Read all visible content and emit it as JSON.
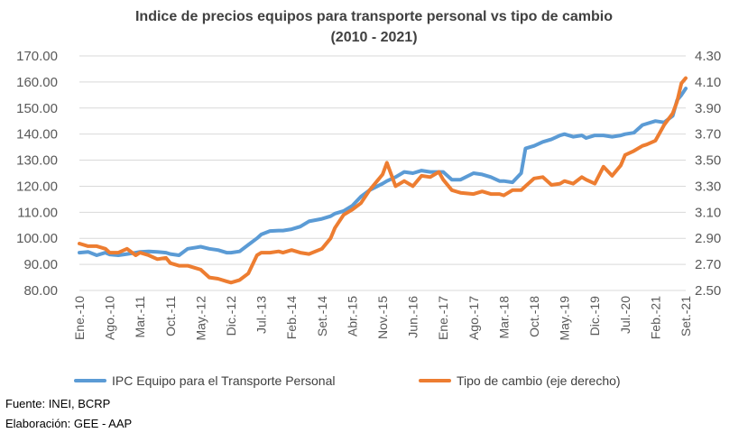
{
  "title_line1": "Indice de precios equipos para transporte personal vs tipo de cambio",
  "title_line2": "(2010 - 2021)",
  "footer_source": "Fuente: INEI, BCRP",
  "footer_prepared": "Elaboración: GEE - AAP",
  "colors": {
    "ipc": "#5b9bd5",
    "tc": "#ed7d31",
    "grid": "#d9d9d9",
    "text": "#595959"
  },
  "chart_data": {
    "type": "line",
    "x_tick_labels": [
      "Ene.-10",
      "Ago.-10",
      "Mar.-11",
      "Oct.-11",
      "May.-12",
      "Dic.-12",
      "Jul.-13",
      "Feb.-14",
      "Set.-14",
      "Abr.-15",
      "Nov.-15",
      "Jun.-16",
      "Ene.-17",
      "Ago.-17",
      "Mar.-18",
      "Oct.-18",
      "May.-19",
      "Dic.-19",
      "Jul.-20",
      "Feb.-21",
      "Set.-21"
    ],
    "y_left": {
      "min": 80,
      "max": 170,
      "step": 10,
      "tick_labels": [
        "80.00",
        "90.00",
        "100.00",
        "110.00",
        "120.00",
        "130.00",
        "140.00",
        "150.00",
        "160.00",
        "170.00"
      ]
    },
    "y_right": {
      "min": 2.5,
      "max": 4.3,
      "step": 0.2,
      "tick_labels": [
        "2.50",
        "2.70",
        "2.90",
        "3.10",
        "3.30",
        "3.50",
        "3.70",
        "3.90",
        "4.10",
        "4.30"
      ]
    },
    "legend_position": "bottom",
    "grid": true,
    "series": [
      {
        "name": "IPC Equipo para el Transporte Personal",
        "axis": "left",
        "points": [
          [
            "Ene.-10",
            94.5
          ],
          [
            "Mar.-10",
            94.8
          ],
          [
            "May.-10",
            93.5
          ],
          [
            "Jul.-10",
            94.5
          ],
          [
            "Ago.-10",
            93.8
          ],
          [
            "Oct.-10",
            93.5
          ],
          [
            "Dic.-10",
            94.0
          ],
          [
            "Feb.-11",
            94.5
          ],
          [
            "Mar.-11",
            94.8
          ],
          [
            "May.-11",
            95.0
          ],
          [
            "Jul.-11",
            94.8
          ],
          [
            "Sep.-11",
            94.5
          ],
          [
            "Oct.-11",
            94.0
          ],
          [
            "Dic.-11",
            93.5
          ],
          [
            "Feb.-12",
            96.0
          ],
          [
            "Abr.-12",
            96.5
          ],
          [
            "May.-12",
            96.8
          ],
          [
            "Jul.-12",
            96.0
          ],
          [
            "Sep.-12",
            95.5
          ],
          [
            "Nov.-12",
            94.5
          ],
          [
            "Dic.-12",
            94.5
          ],
          [
            "Feb.-13",
            95.0
          ],
          [
            "Abr.-13",
            97.5
          ],
          [
            "Jun.-13",
            100.0
          ],
          [
            "Jul.-13",
            101.5
          ],
          [
            "Set.-13",
            102.8
          ],
          [
            "Nov.-13",
            103.0
          ],
          [
            "Dic.-13",
            103.0
          ],
          [
            "Feb.-14",
            103.5
          ],
          [
            "Abr.-14",
            104.5
          ],
          [
            "Jun.-14",
            106.5
          ],
          [
            "Set.-14",
            107.5
          ],
          [
            "Nov.-14",
            108.5
          ],
          [
            "Dic.-14",
            109.5
          ],
          [
            "Feb.-15",
            110.5
          ],
          [
            "Abr.-15",
            112.5
          ],
          [
            "Jun.-15",
            116.0
          ],
          [
            "Ago.-15",
            118.5
          ],
          [
            "Nov.-15",
            121.0
          ],
          [
            "Dic.-15",
            122.0
          ],
          [
            "Feb.-16",
            123.5
          ],
          [
            "Abr.-16",
            125.5
          ],
          [
            "Jun.-16",
            125.0
          ],
          [
            "Ago.-16",
            126.0
          ],
          [
            "Oct.-16",
            125.5
          ],
          [
            "Dic.-16",
            125.5
          ],
          [
            "Ene.-17",
            125.5
          ],
          [
            "Mar.-17",
            122.5
          ],
          [
            "May.-17",
            122.5
          ],
          [
            "Ago.-17",
            125.0
          ],
          [
            "Oct.-17",
            124.5
          ],
          [
            "Dic.-17",
            123.5
          ],
          [
            "Feb.-18",
            122.0
          ],
          [
            "Mar.-18",
            122.0
          ],
          [
            "May.-18",
            121.5
          ],
          [
            "Jul.-18",
            125.0
          ],
          [
            "Ago.-18",
            134.5
          ],
          [
            "Oct.-18",
            135.5
          ],
          [
            "Dic.-18",
            137.0
          ],
          [
            "Feb.-19",
            138.0
          ],
          [
            "Abr.-19",
            139.5
          ],
          [
            "May.-19",
            140.0
          ],
          [
            "Jul.-19",
            139.0
          ],
          [
            "Sep.-19",
            139.5
          ],
          [
            "Oct.-19",
            138.5
          ],
          [
            "Dic.-19",
            139.5
          ],
          [
            "Feb.-20",
            139.5
          ],
          [
            "Abr.-20",
            139.0
          ],
          [
            "Jun.-20",
            139.5
          ],
          [
            "Jul.-20",
            140.0
          ],
          [
            "Sep.-20",
            140.5
          ],
          [
            "Nov.-20",
            143.5
          ],
          [
            "Dic.-20",
            144.0
          ],
          [
            "Feb.-21",
            145.0
          ],
          [
            "Abr.-21",
            144.5
          ],
          [
            "Jun.-21",
            147.0
          ],
          [
            "Jul.-21",
            153.0
          ],
          [
            "Ago.-21",
            155.0
          ],
          [
            "Set.-21",
            157.5
          ]
        ]
      },
      {
        "name": "Tipo de cambio (eje derecho)",
        "axis": "right",
        "points": [
          [
            "Ene.-10",
            2.86
          ],
          [
            "Mar.-10",
            2.84
          ],
          [
            "May.-10",
            2.84
          ],
          [
            "Jul.-10",
            2.82
          ],
          [
            "Ago.-10",
            2.79
          ],
          [
            "Oct.-10",
            2.79
          ],
          [
            "Dic.-10",
            2.82
          ],
          [
            "Feb.-11",
            2.77
          ],
          [
            "Mar.-11",
            2.79
          ],
          [
            "May.-11",
            2.77
          ],
          [
            "Jul.-11",
            2.74
          ],
          [
            "Sep.-11",
            2.75
          ],
          [
            "Oct.-11",
            2.71
          ],
          [
            "Dic.-11",
            2.69
          ],
          [
            "Feb.-12",
            2.69
          ],
          [
            "Abr.-12",
            2.67
          ],
          [
            "May.-12",
            2.66
          ],
          [
            "Jul.-12",
            2.6
          ],
          [
            "Sep.-12",
            2.59
          ],
          [
            "Nov.-12",
            2.57
          ],
          [
            "Dic.-12",
            2.56
          ],
          [
            "Feb.-13",
            2.58
          ],
          [
            "Abr.-13",
            2.63
          ],
          [
            "Jun.-13",
            2.77
          ],
          [
            "Jul.-13",
            2.79
          ],
          [
            "Set.-13",
            2.79
          ],
          [
            "Nov.-13",
            2.8
          ],
          [
            "Dic.-13",
            2.79
          ],
          [
            "Feb.-14",
            2.81
          ],
          [
            "Abr.-14",
            2.79
          ],
          [
            "Jun.-14",
            2.78
          ],
          [
            "Set.-14",
            2.82
          ],
          [
            "Nov.-14",
            2.9
          ],
          [
            "Dic.-14",
            2.98
          ],
          [
            "Feb.-15",
            3.08
          ],
          [
            "Abr.-15",
            3.12
          ],
          [
            "Jun.-15",
            3.17
          ],
          [
            "Ago.-15",
            3.27
          ],
          [
            "Nov.-15",
            3.39
          ],
          [
            "Dic.-15",
            3.48
          ],
          [
            "Feb.-16",
            3.3
          ],
          [
            "Abr.-16",
            3.34
          ],
          [
            "Jun.-16",
            3.3
          ],
          [
            "Ago.-16",
            3.38
          ],
          [
            "Oct.-16",
            3.37
          ],
          [
            "Dic.-16",
            3.41
          ],
          [
            "Ene.-17",
            3.35
          ],
          [
            "Mar.-17",
            3.27
          ],
          [
            "May.-17",
            3.25
          ],
          [
            "Ago.-17",
            3.24
          ],
          [
            "Oct.-17",
            3.26
          ],
          [
            "Dic.-17",
            3.24
          ],
          [
            "Feb.-18",
            3.24
          ],
          [
            "Mar.-18",
            3.23
          ],
          [
            "May.-18",
            3.27
          ],
          [
            "Jul.-18",
            3.27
          ],
          [
            "Ago.-18",
            3.3
          ],
          [
            "Oct.-18",
            3.36
          ],
          [
            "Dic.-18",
            3.37
          ],
          [
            "Feb.-19",
            3.31
          ],
          [
            "Abr.-19",
            3.32
          ],
          [
            "May.-19",
            3.34
          ],
          [
            "Jul.-19",
            3.32
          ],
          [
            "Sep.-19",
            3.37
          ],
          [
            "Oct.-19",
            3.35
          ],
          [
            "Dic.-19",
            3.32
          ],
          [
            "Feb.-20",
            3.45
          ],
          [
            "Abr.-20",
            3.38
          ],
          [
            "Jun.-20",
            3.46
          ],
          [
            "Jul.-20",
            3.54
          ],
          [
            "Sep.-20",
            3.57
          ],
          [
            "Nov.-20",
            3.61
          ],
          [
            "Dic.-20",
            3.62
          ],
          [
            "Feb.-21",
            3.65
          ],
          [
            "Abr.-21",
            3.77
          ],
          [
            "Jun.-21",
            3.86
          ],
          [
            "Jul.-21",
            3.95
          ],
          [
            "Ago.-21",
            4.09
          ],
          [
            "Set.-21",
            4.13
          ]
        ]
      }
    ]
  }
}
